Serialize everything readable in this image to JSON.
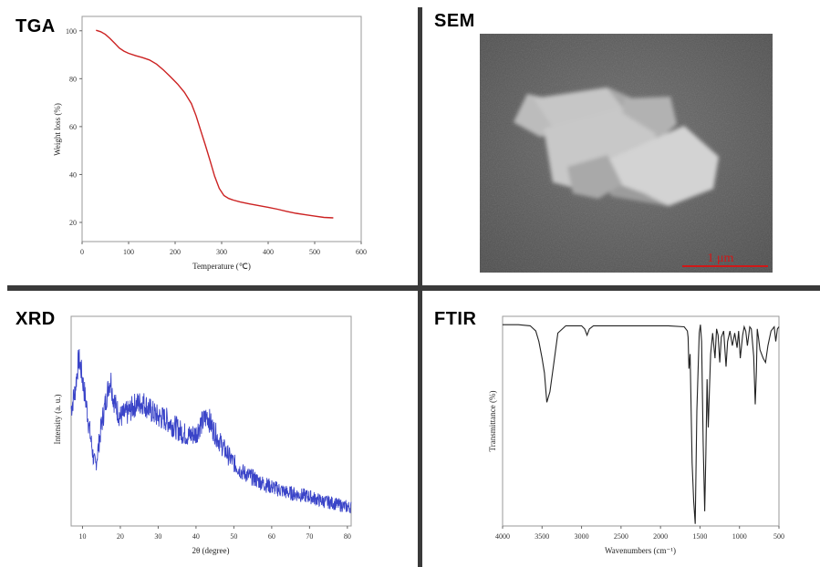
{
  "panels": {
    "tga": {
      "label": "TGA"
    },
    "sem": {
      "label": "SEM",
      "scale_bar": "1 μm"
    },
    "xrd": {
      "label": "XRD"
    },
    "ftir": {
      "label": "FTIR"
    }
  },
  "colors": {
    "tga_line": "#cc2222",
    "xrd_line": "#3a44c8",
    "ftir_line": "#222222",
    "scale_bar": "#d01818",
    "divider": "#3a3a3a"
  },
  "chart_data": [
    {
      "id": "tga",
      "type": "line",
      "xlabel": "Temperature (℃)",
      "ylabel": "Weight loss (%)",
      "xlim": [
        0,
        600
      ],
      "ylim": [
        12,
        106
      ],
      "xticks": [
        "0",
        "100",
        "200",
        "300",
        "400",
        "500",
        "600"
      ],
      "xtick_values": [
        0,
        100,
        200,
        300,
        400,
        500,
        600
      ],
      "yticks": [
        "20",
        "40",
        "60",
        "80",
        "100"
      ],
      "ytick_values": [
        20,
        40,
        60,
        80,
        100
      ],
      "grid": false,
      "series": [
        {
          "x": [
            30,
            40,
            50,
            60,
            70,
            80,
            90,
            100,
            115,
            130,
            145,
            160,
            175,
            190,
            205,
            220,
            235,
            245,
            255,
            265,
            275,
            285,
            295,
            305,
            315,
            325,
            340,
            360,
            380,
            400,
            420,
            440,
            460,
            480,
            500,
            520,
            540
          ],
          "y": [
            100.2,
            99.6,
            98.5,
            96.8,
            94.8,
            92.8,
            91.5,
            90.6,
            89.6,
            88.8,
            87.8,
            86.1,
            83.6,
            80.8,
            77.8,
            74.3,
            69.6,
            64.6,
            58.4,
            52.2,
            45.8,
            39.3,
            34.2,
            31.2,
            30.0,
            29.3,
            28.5,
            27.7,
            27.0,
            26.3,
            25.5,
            24.6,
            23.8,
            23.2,
            22.6,
            22.1,
            21.9
          ]
        }
      ]
    },
    {
      "id": "xrd",
      "type": "line",
      "xlabel": "2θ (degree)",
      "ylabel": "Intensity (a. u.)",
      "xlim": [
        7,
        81
      ],
      "ylim": [
        0,
        100
      ],
      "xticks": [
        "10",
        "20",
        "30",
        "40",
        "50",
        "60",
        "70",
        "80"
      ],
      "xtick_values": [
        10,
        20,
        30,
        40,
        50,
        60,
        70,
        80
      ],
      "yticks": [],
      "grid": false,
      "series": [
        {
          "x": [
            7,
            8,
            9,
            9.5,
            10,
            11,
            12,
            13,
            13.5,
            14,
            15,
            16,
            17,
            17.5,
            18,
            19,
            20,
            22,
            24,
            26,
            28,
            30,
            32,
            34,
            36,
            38,
            40,
            41,
            42,
            43,
            44,
            46,
            48,
            50,
            52,
            55,
            58,
            61,
            64,
            67,
            70,
            73,
            76,
            78,
            80
          ],
          "y": [
            56,
            64,
            80,
            76,
            70,
            58,
            44,
            31,
            29,
            35,
            48,
            58,
            68,
            70,
            62,
            56,
            52,
            54,
            58,
            59,
            55,
            52,
            51,
            48,
            45,
            43,
            44,
            48,
            50,
            53,
            48,
            41,
            35,
            30,
            26,
            23,
            20,
            18,
            16,
            15,
            14,
            12,
            11,
            10,
            9
          ],
          "noise": 6
        }
      ]
    },
    {
      "id": "ftir",
      "type": "line",
      "xlabel": "Wavenumbers (cm⁻¹)",
      "ylabel": "Transmittance (%)",
      "xlim": [
        4000,
        500
      ],
      "ylim": [
        0,
        100
      ],
      "xticks": [
        "4000",
        "3500",
        "3000",
        "2500",
        "2000",
        "1500",
        "1000",
        "500"
      ],
      "xtick_values": [
        4000,
        3500,
        3000,
        2500,
        2000,
        1500,
        1000,
        500
      ],
      "yticks": [],
      "grid": false,
      "series": [
        {
          "x": [
            4000,
            3800,
            3650,
            3580,
            3540,
            3500,
            3470,
            3440,
            3400,
            3350,
            3300,
            3200,
            3000,
            2960,
            2930,
            2900,
            2850,
            2700,
            2500,
            2200,
            1900,
            1700,
            1660,
            1650,
            1640,
            1625,
            1600,
            1580,
            1560,
            1540,
            1510,
            1495,
            1480,
            1460,
            1440,
            1425,
            1410,
            1395,
            1380,
            1365,
            1340,
            1310,
            1290,
            1270,
            1250,
            1230,
            1200,
            1170,
            1150,
            1120,
            1090,
            1060,
            1030,
            1010,
            990,
            960,
            940,
            920,
            900,
            870,
            850,
            820,
            800,
            785,
            775,
            760,
            740,
            700,
            670,
            640,
            600,
            560,
            540,
            520,
            500
          ],
          "y": [
            96,
            96,
            95.5,
            93,
            88,
            80,
            73,
            59,
            64,
            78,
            92,
            95.5,
            95.5,
            94,
            91,
            94,
            95.5,
            95.5,
            95.5,
            95.5,
            95.5,
            95,
            93,
            90,
            75,
            82,
            30,
            12,
            1,
            55,
            92,
            96,
            88,
            40,
            7,
            35,
            70,
            47,
            65,
            82,
            92,
            80,
            94,
            91,
            78,
            90,
            93,
            76,
            88,
            93,
            86,
            92,
            85,
            93,
            80,
            91,
            95,
            93,
            86,
            95,
            94,
            81,
            58,
            74,
            94,
            90,
            84,
            80,
            78,
            86,
            93,
            95,
            88,
            94,
            95
          ]
        }
      ]
    }
  ]
}
